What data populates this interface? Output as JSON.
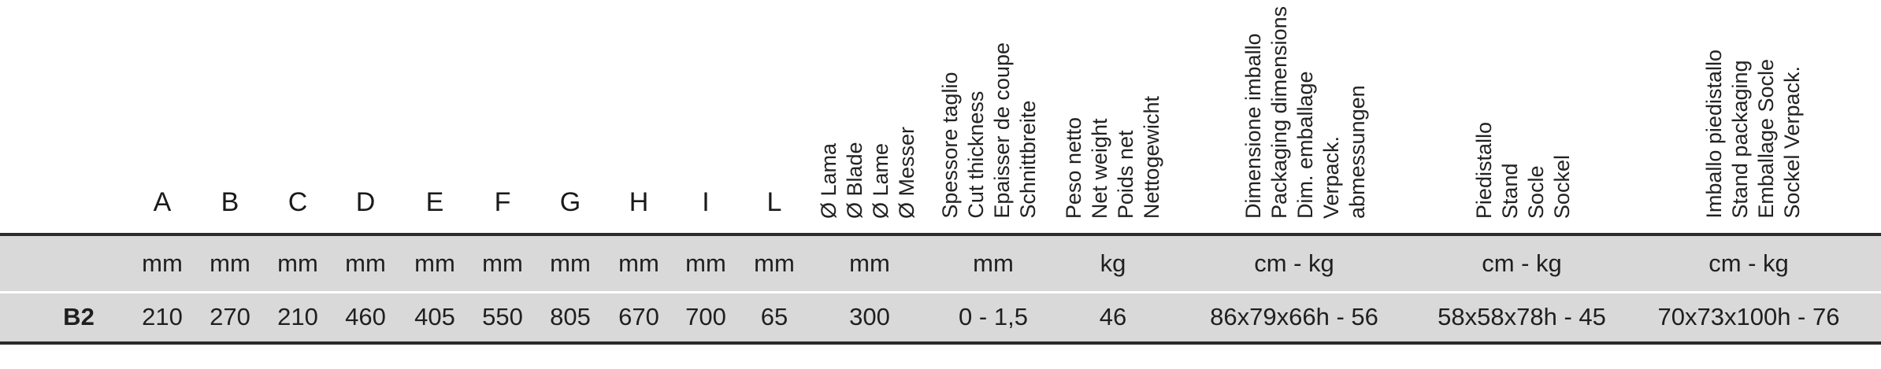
{
  "columns": {
    "letters": [
      "A",
      "B",
      "C",
      "D",
      "E",
      "F",
      "G",
      "H",
      "I",
      "L"
    ],
    "blade": [
      "Ø Lama",
      "Ø Blade",
      "Ø Lame",
      "Ø Messer"
    ],
    "cut_thickness": [
      "Spessore taglio",
      "Cut thickness",
      "Epaisser de coupe",
      "Schnittbreite"
    ],
    "net_weight": [
      "Peso netto",
      "Net weight",
      "Poids net",
      "Nettogewicht"
    ],
    "packaging": [
      "Dimensione imballo",
      "Packaging dimensions",
      "Dim. emballage",
      "Verpack. abmessungen"
    ],
    "stand": [
      "Piedistallo",
      "Stand",
      "Socle",
      "Sockel"
    ],
    "stand_packaging": [
      "Imballo piedistallo",
      "Stand packaging",
      "Emballage Socle",
      "Sockel Verpack."
    ]
  },
  "units": [
    "mm",
    "mm",
    "mm",
    "mm",
    "mm",
    "mm",
    "mm",
    "mm",
    "mm",
    "mm",
    "mm",
    "mm",
    "kg",
    "cm - kg",
    "cm - kg",
    "cm - kg"
  ],
  "rows": [
    {
      "model": "B2",
      "values": [
        "210",
        "270",
        "210",
        "460",
        "405",
        "550",
        "805",
        "670",
        "700",
        "65",
        "300",
        "0 - 1,5",
        "46",
        "86x79x66h - 56",
        "58x58x78h - 45",
        "70x73x100h - 76"
      ]
    }
  ]
}
